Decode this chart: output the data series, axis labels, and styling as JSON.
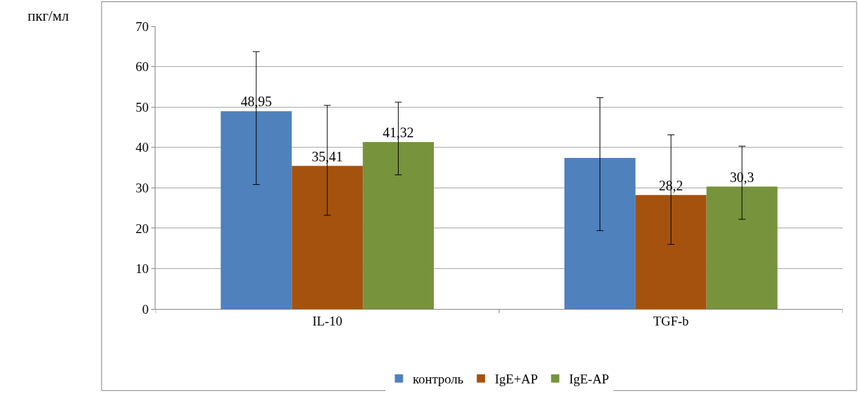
{
  "chart_data": {
    "type": "bar",
    "ylabel": "пкг/мл",
    "categories": [
      "IL-10",
      "TGF-b"
    ],
    "series": [
      {
        "name": "контроль",
        "color": "#4f81bd",
        "values": [
          48.95,
          37.4
        ],
        "value_labels": [
          "48,95",
          null
        ],
        "errors": [
          [
            30.8,
            63.7
          ],
          [
            19.4,
            52.3
          ]
        ]
      },
      {
        "name": "IgE+AP",
        "color": "#a5520f",
        "values": [
          35.41,
          28.2
        ],
        "value_labels": [
          "35,41",
          "28,2"
        ],
        "errors": [
          [
            23.2,
            50.4
          ],
          [
            16.0,
            43.1
          ]
        ]
      },
      {
        "name": "IgE-AP",
        "color": "#77933c",
        "values": [
          41.32,
          30.3
        ],
        "value_labels": [
          "41,32",
          "30,3"
        ],
        "errors": [
          [
            33.2,
            51.2
          ],
          [
            22.2,
            40.3
          ]
        ]
      }
    ],
    "ylim": [
      0,
      70
    ],
    "yticks": [
      0,
      10,
      20,
      30,
      40,
      50,
      60,
      70
    ],
    "grid": "y",
    "legend": "bottom"
  }
}
